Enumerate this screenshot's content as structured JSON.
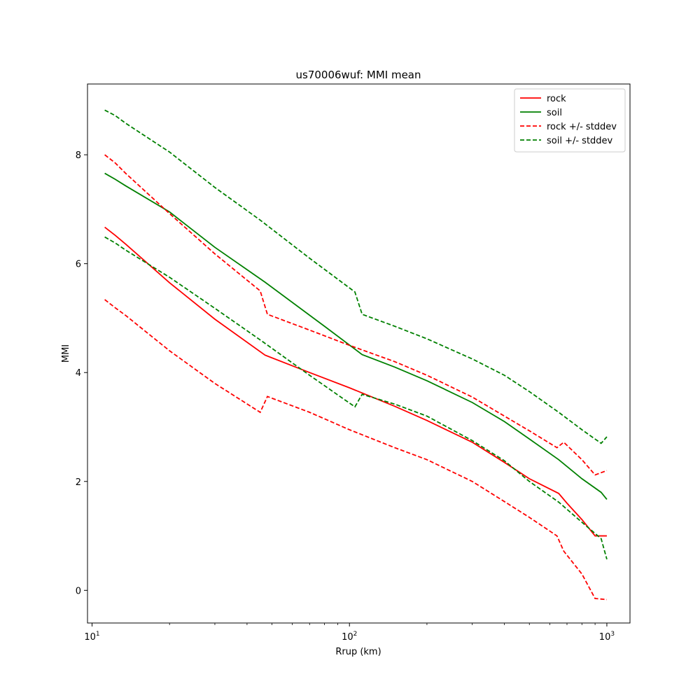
{
  "chart_data": {
    "type": "line",
    "title": "us70006wuf: MMI mean",
    "xlabel": "Rrup (km)",
    "ylabel": "MMI",
    "xscale": "log",
    "xlim": [
      9.6,
      1230
    ],
    "ylim": [
      -0.6,
      9.3
    ],
    "xticks": [
      {
        "value": 10,
        "base": "10",
        "exp": "1"
      },
      {
        "value": 100,
        "base": "10",
        "exp": "2"
      },
      {
        "value": 1000,
        "base": "10",
        "exp": "3"
      }
    ],
    "yticks": [
      0,
      2,
      4,
      6,
      8
    ],
    "grid": false,
    "legend_position": "top-right",
    "colors": {
      "rock": "#ff0000",
      "soil": "#008000"
    },
    "series": [
      {
        "name": "rock",
        "color": "#ff0000",
        "dash": "solid",
        "points": [
          [
            11.2,
            6.67
          ],
          [
            12.3,
            6.52
          ],
          [
            13.5,
            6.36
          ],
          [
            20,
            5.65
          ],
          [
            30,
            4.98
          ],
          [
            47,
            4.32
          ],
          [
            70,
            4.0
          ],
          [
            100,
            3.72
          ],
          [
            150,
            3.38
          ],
          [
            200,
            3.12
          ],
          [
            300,
            2.72
          ],
          [
            400,
            2.35
          ],
          [
            500,
            2.05
          ],
          [
            650,
            1.78
          ],
          [
            700,
            1.6
          ],
          [
            800,
            1.3
          ],
          [
            900,
            1.0
          ],
          [
            1000,
            1.0
          ]
        ]
      },
      {
        "name": "soil",
        "color": "#008000",
        "dash": "solid",
        "points": [
          [
            11.2,
            7.66
          ],
          [
            12.3,
            7.55
          ],
          [
            13.5,
            7.43
          ],
          [
            20,
            6.95
          ],
          [
            30,
            6.3
          ],
          [
            47,
            5.66
          ],
          [
            80,
            4.85
          ],
          [
            112,
            4.33
          ],
          [
            150,
            4.1
          ],
          [
            200,
            3.85
          ],
          [
            300,
            3.45
          ],
          [
            400,
            3.1
          ],
          [
            500,
            2.78
          ],
          [
            650,
            2.4
          ],
          [
            800,
            2.05
          ],
          [
            950,
            1.8
          ],
          [
            1000,
            1.67
          ]
        ]
      },
      {
        "name": "rock +/- stddev",
        "color": "#ff0000",
        "dash": "dashed",
        "points": [
          [
            11.2,
            8.0
          ],
          [
            12.3,
            7.85
          ],
          [
            13.5,
            7.66
          ],
          [
            20,
            6.92
          ],
          [
            30,
            6.18
          ],
          [
            45,
            5.5
          ],
          [
            48,
            5.07
          ],
          [
            70,
            4.78
          ],
          [
            100,
            4.5
          ],
          [
            150,
            4.2
          ],
          [
            200,
            3.95
          ],
          [
            300,
            3.55
          ],
          [
            400,
            3.2
          ],
          [
            500,
            2.93
          ],
          [
            640,
            2.62
          ],
          [
            680,
            2.72
          ],
          [
            800,
            2.4
          ],
          [
            900,
            2.12
          ],
          [
            1000,
            2.2
          ]
        ]
      },
      {
        "name": "rock +/- stddev",
        "color": "#ff0000",
        "dash": "dashed",
        "points": [
          [
            11.2,
            5.34
          ],
          [
            12.3,
            5.19
          ],
          [
            13.5,
            5.05
          ],
          [
            20,
            4.4
          ],
          [
            30,
            3.8
          ],
          [
            45,
            3.27
          ],
          [
            48,
            3.56
          ],
          [
            70,
            3.27
          ],
          [
            100,
            2.95
          ],
          [
            150,
            2.62
          ],
          [
            200,
            2.4
          ],
          [
            300,
            2.0
          ],
          [
            400,
            1.63
          ],
          [
            500,
            1.34
          ],
          [
            640,
            1.0
          ],
          [
            680,
            0.72
          ],
          [
            800,
            0.3
          ],
          [
            900,
            -0.15
          ],
          [
            1000,
            -0.17
          ]
        ]
      },
      {
        "name": "soil +/- stddev",
        "color": "#008000",
        "dash": "dashed",
        "points": [
          [
            11.2,
            8.82
          ],
          [
            12.3,
            8.72
          ],
          [
            13.5,
            8.58
          ],
          [
            20,
            8.05
          ],
          [
            30,
            7.4
          ],
          [
            45,
            6.8
          ],
          [
            70,
            6.1
          ],
          [
            105,
            5.48
          ],
          [
            112,
            5.07
          ],
          [
            150,
            4.85
          ],
          [
            200,
            4.62
          ],
          [
            300,
            4.25
          ],
          [
            400,
            3.95
          ],
          [
            500,
            3.65
          ],
          [
            650,
            3.27
          ],
          [
            800,
            2.95
          ],
          [
            950,
            2.7
          ],
          [
            1000,
            2.82
          ]
        ]
      },
      {
        "name": "soil +/- stddev",
        "color": "#008000",
        "dash": "dashed",
        "points": [
          [
            11.2,
            6.49
          ],
          [
            12.3,
            6.38
          ],
          [
            13.5,
            6.25
          ],
          [
            20,
            5.75
          ],
          [
            30,
            5.18
          ],
          [
            45,
            4.6
          ],
          [
            70,
            3.95
          ],
          [
            105,
            3.37
          ],
          [
            112,
            3.6
          ],
          [
            150,
            3.42
          ],
          [
            200,
            3.2
          ],
          [
            300,
            2.75
          ],
          [
            400,
            2.38
          ],
          [
            500,
            2.0
          ],
          [
            650,
            1.62
          ],
          [
            800,
            1.25
          ],
          [
            950,
            0.95
          ],
          [
            1000,
            0.57
          ]
        ]
      }
    ],
    "legend": [
      {
        "label": "rock",
        "color": "#ff0000",
        "dash": "solid"
      },
      {
        "label": "soil",
        "color": "#008000",
        "dash": "solid"
      },
      {
        "label": "rock +/- stddev",
        "color": "#ff0000",
        "dash": "dashed"
      },
      {
        "label": "soil +/- stddev",
        "color": "#008000",
        "dash": "dashed"
      }
    ]
  }
}
